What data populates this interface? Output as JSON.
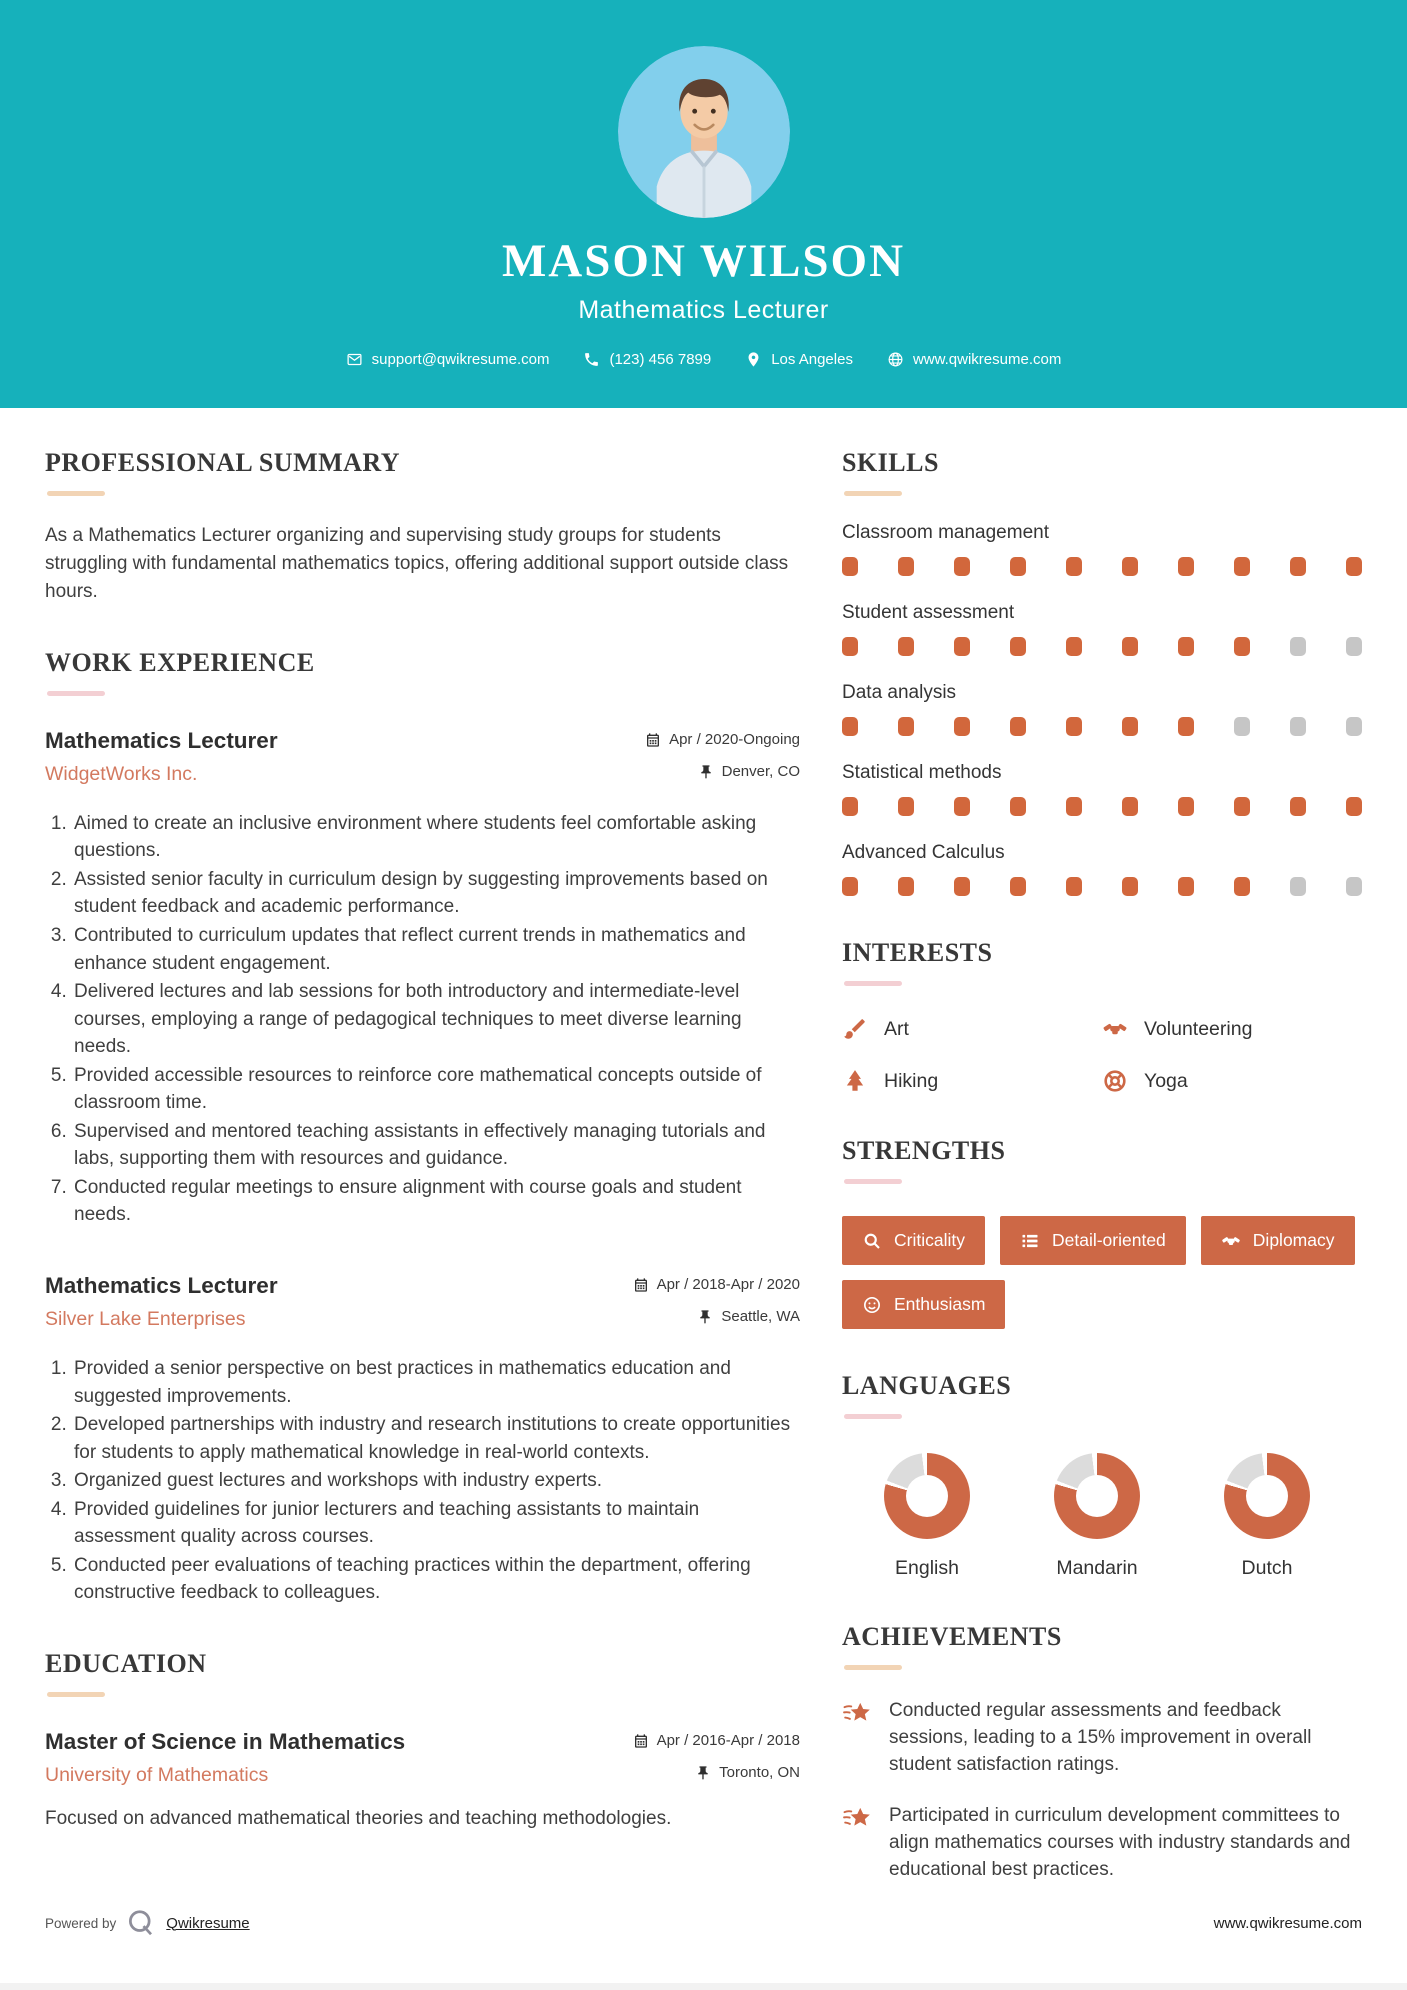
{
  "colors": {
    "teal": "#16b1bb",
    "accent": "#cd6846",
    "dot_filled": "#d2673c",
    "dot_empty": "#c6c6c6",
    "company": "#d3795f",
    "rule_peach": "#f2d4b5",
    "rule_pink": "#f3cfd3"
  },
  "header": {
    "name": "MASON WILSON",
    "title": "Mathematics Lecturer",
    "contact": {
      "email": "support@qwikresume.com",
      "phone": "(123) 456 7899",
      "location": "Los Angeles",
      "website": "www.qwikresume.com"
    }
  },
  "sections": {
    "summary": {
      "heading": "PROFESSIONAL SUMMARY",
      "text": "As a Mathematics Lecturer organizing and supervising study groups for students struggling with fundamental mathematics topics, offering additional support outside class hours."
    },
    "work": {
      "heading": "WORK EXPERIENCE",
      "jobs": [
        {
          "title": "Mathematics Lecturer",
          "company": "WidgetWorks Inc.",
          "dates": "Apr / 2020-Ongoing",
          "location": "Denver, CO",
          "bullets": [
            "Aimed to create an inclusive environment where students feel comfortable asking questions.",
            "Assisted senior faculty in curriculum design by suggesting improvements based on student feedback and academic performance.",
            "Contributed to curriculum updates that reflect current trends in mathematics and enhance student engagement.",
            "Delivered lectures and lab sessions for both introductory and intermediate-level courses, employing a range of pedagogical techniques to meet diverse learning needs.",
            "Provided accessible resources to reinforce core mathematical concepts outside of classroom time.",
            "Supervised and mentored teaching assistants in effectively managing tutorials and labs, supporting them with resources and guidance.",
            "Conducted regular meetings to ensure alignment with course goals and student needs."
          ]
        },
        {
          "title": "Mathematics Lecturer",
          "company": "Silver Lake Enterprises",
          "dates": "Apr / 2018-Apr / 2020",
          "location": "Seattle, WA",
          "bullets": [
            "Provided a senior perspective on best practices in mathematics education and suggested improvements.",
            "Developed partnerships with industry and research institutions to create opportunities for students to apply mathematical knowledge in real-world contexts.",
            "Organized guest lectures and workshops with industry experts.",
            "Provided guidelines for junior lecturers and teaching assistants to maintain assessment quality across courses.",
            "Conducted peer evaluations of teaching practices within the department, offering constructive feedback to colleagues."
          ]
        }
      ]
    },
    "education": {
      "heading": "EDUCATION",
      "degree": "Master of Science in Mathematics",
      "school": "University of Mathematics",
      "dates": "Apr / 2016-Apr / 2018",
      "location": "Toronto, ON",
      "description": "Focused on advanced mathematical theories and teaching methodologies."
    },
    "skills": {
      "heading": "SKILLS",
      "max": 10,
      "items": [
        {
          "label": "Classroom management",
          "level": 10
        },
        {
          "label": "Student assessment",
          "level": 8
        },
        {
          "label": "Data analysis",
          "level": 7
        },
        {
          "label": "Statistical methods",
          "level": 10
        },
        {
          "label": "Advanced Calculus",
          "level": 8
        }
      ]
    },
    "interests": {
      "heading": "INTERESTS",
      "items": [
        {
          "label": "Art",
          "icon": "paintbrush-icon"
        },
        {
          "label": "Volunteering",
          "icon": "handshake-icon"
        },
        {
          "label": "Hiking",
          "icon": "tree-icon"
        },
        {
          "label": "Yoga",
          "icon": "lifebuoy-icon"
        }
      ]
    },
    "strengths": {
      "heading": "STRENGTHS",
      "items": [
        {
          "label": "Criticality",
          "icon": "search-icon"
        },
        {
          "label": "Detail-oriented",
          "icon": "list-icon"
        },
        {
          "label": "Diplomacy",
          "icon": "handshake-icon"
        },
        {
          "label": "Enthusiasm",
          "icon": "smiley-icon"
        }
      ]
    },
    "languages": {
      "heading": "LANGUAGES",
      "items": [
        {
          "label": "English",
          "percent": 80
        },
        {
          "label": "Mandarin",
          "percent": 80
        },
        {
          "label": "Dutch",
          "percent": 80
        }
      ]
    },
    "achievements": {
      "heading": "ACHIEVEMENTS",
      "items": [
        "Conducted regular assessments and feedback sessions, leading to a 15% improvement in overall student satisfaction ratings.",
        "Participated in curriculum development committees to align mathematics courses with industry standards and educational best practices."
      ]
    }
  },
  "footer": {
    "powered_by": "Powered by",
    "brand": "Qwikresume",
    "website": "www.qwikresume.com"
  }
}
